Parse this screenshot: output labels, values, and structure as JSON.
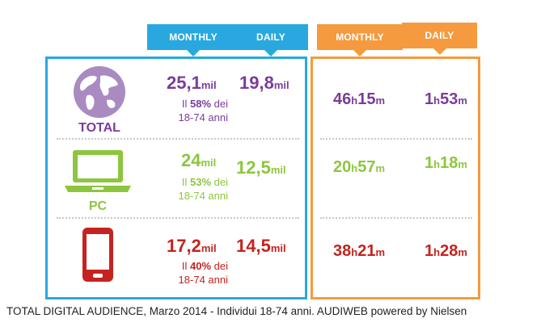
{
  "headers": {
    "audience_monthly": "MONTHLY",
    "audience_daily": "DAILY",
    "time_monthly": "MONTHLY",
    "time_daily": "DAILY"
  },
  "colors": {
    "audience_accent": "#29a8e0",
    "time_accent": "#f59a3e",
    "total": "#7a3c9a",
    "pc": "#8cc63f",
    "mobile": "#c5231f"
  },
  "rows": [
    {
      "label": "TOTAL",
      "icon": "globe-icon",
      "monthly_value": "25,1",
      "monthly_unit": "mil",
      "share_prefix": "Il ",
      "share_pct": "58%",
      "share_suffix": " dei",
      "share_range": "18-74 anni",
      "daily_value": "19,8",
      "daily_unit": "mil",
      "time_monthly": {
        "h": "46",
        "h_unit": "h",
        "m": "15",
        "m_unit": "m"
      },
      "time_daily": {
        "h": "1",
        "h_unit": "h",
        "m": "53",
        "m_unit": "m"
      }
    },
    {
      "label": "PC",
      "icon": "laptop-icon",
      "monthly_value": "24",
      "monthly_unit": "mil",
      "share_prefix": "Il ",
      "share_pct": "53%",
      "share_suffix": " dei",
      "share_range": "18-74 anni",
      "daily_value": "12,5",
      "daily_unit": "mil",
      "time_monthly": {
        "h": "20",
        "h_unit": "h",
        "m": "57",
        "m_unit": "m"
      },
      "time_daily": {
        "h": "1",
        "h_unit": "h",
        "m": "18",
        "m_unit": "m"
      }
    },
    {
      "label": "",
      "icon": "smartphone-icon",
      "monthly_value": "17,2",
      "monthly_unit": "mil",
      "share_prefix": "Il ",
      "share_pct": "40%",
      "share_suffix": " dei",
      "share_range": "18-74 anni",
      "daily_value": "14,5",
      "daily_unit": "mil",
      "time_monthly": {
        "h": "38",
        "h_unit": "h",
        "m": "21",
        "m_unit": "m"
      },
      "time_daily": {
        "h": "1",
        "h_unit": "h",
        "m": "28",
        "m_unit": "m"
      }
    }
  ],
  "footer": "TOTAL DIGITAL AUDIENCE, Marzo 2014 - Individui 18-74 anni. AUDIWEB powered by Nielsen",
  "chart_data": {
    "type": "table",
    "columns": [
      "MONTHLY",
      "DAILY",
      "MONTHLY",
      "DAILY"
    ],
    "rows": [
      {
        "label": "TOTAL",
        "monthly_users_mil": 25.1,
        "share_18_74_pct": 58,
        "daily_users_mil": 19.8,
        "monthly_time": "46h15m",
        "daily_time": "1h53m"
      },
      {
        "label": "PC",
        "monthly_users_mil": 24,
        "share_18_74_pct": 53,
        "daily_users_mil": 12.5,
        "monthly_time": "20h57m",
        "daily_time": "1h18m"
      },
      {
        "label": "",
        "monthly_users_mil": 17.2,
        "share_18_74_pct": 40,
        "daily_users_mil": 14.5,
        "monthly_time": "38h21m",
        "daily_time": "1h28m"
      }
    ]
  }
}
